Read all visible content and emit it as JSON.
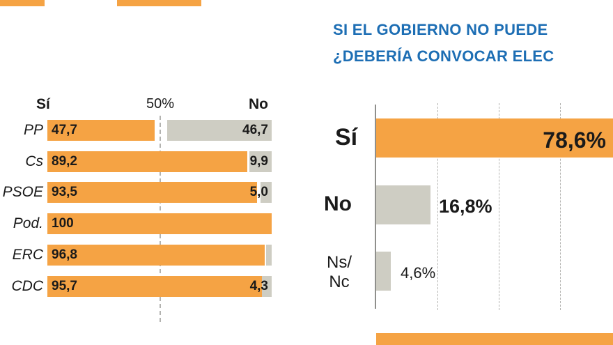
{
  "colors": {
    "orange": "#F5A344",
    "gray": "#CECDC3",
    "title_blue": "#1D6EB4",
    "grid": "#B3B3B0",
    "text": "#1A1A1A"
  },
  "chart_data": [
    {
      "type": "bar",
      "orientation": "horizontal-stacked",
      "header_yes": "Sí",
      "header_no": "No",
      "midline_label": "50%",
      "x_range": [
        0,
        100
      ],
      "grid": "dashed-50-percent-line",
      "rows": [
        {
          "party": "PP",
          "yes": 47.7,
          "yes_label": "47,7",
          "no": 46.7,
          "no_label": "46,7"
        },
        {
          "party": "Cs",
          "yes": 89.2,
          "yes_label": "89,2",
          "no": 9.9,
          "no_label": "9,9"
        },
        {
          "party": "PSOE",
          "yes": 93.5,
          "yes_label": "93,5",
          "no": 5.0,
          "no_label": "5,0"
        },
        {
          "party": "Pod.",
          "yes": 100,
          "yes_label": "100",
          "no": null,
          "no_label": ""
        },
        {
          "party": "ERC",
          "yes": 96.8,
          "yes_label": "96,8",
          "no": 2.5,
          "no_label": ""
        },
        {
          "party": "CDC",
          "yes": 95.7,
          "yes_label": "95,7",
          "no": 4.3,
          "no_label": "4,3"
        }
      ]
    },
    {
      "type": "bar",
      "orientation": "horizontal",
      "title_line1": "SI EL GOBIERNO NO PUEDE",
      "title_line2": "¿DEBERÍA CONVOCAR ELEC",
      "grid": "dashed-vertical-lines",
      "bars": [
        {
          "label": "Sí",
          "value": 78.6,
          "value_label": "78,6%",
          "color": "orange"
        },
        {
          "label": "No",
          "value": 16.8,
          "value_label": "16,8%",
          "color": "gray"
        },
        {
          "label_line1": "Ns/",
          "label_line2": "Nc",
          "label": "Ns/Nc",
          "value": 4.6,
          "value_label": "4,6%",
          "color": "gray"
        }
      ]
    }
  ]
}
